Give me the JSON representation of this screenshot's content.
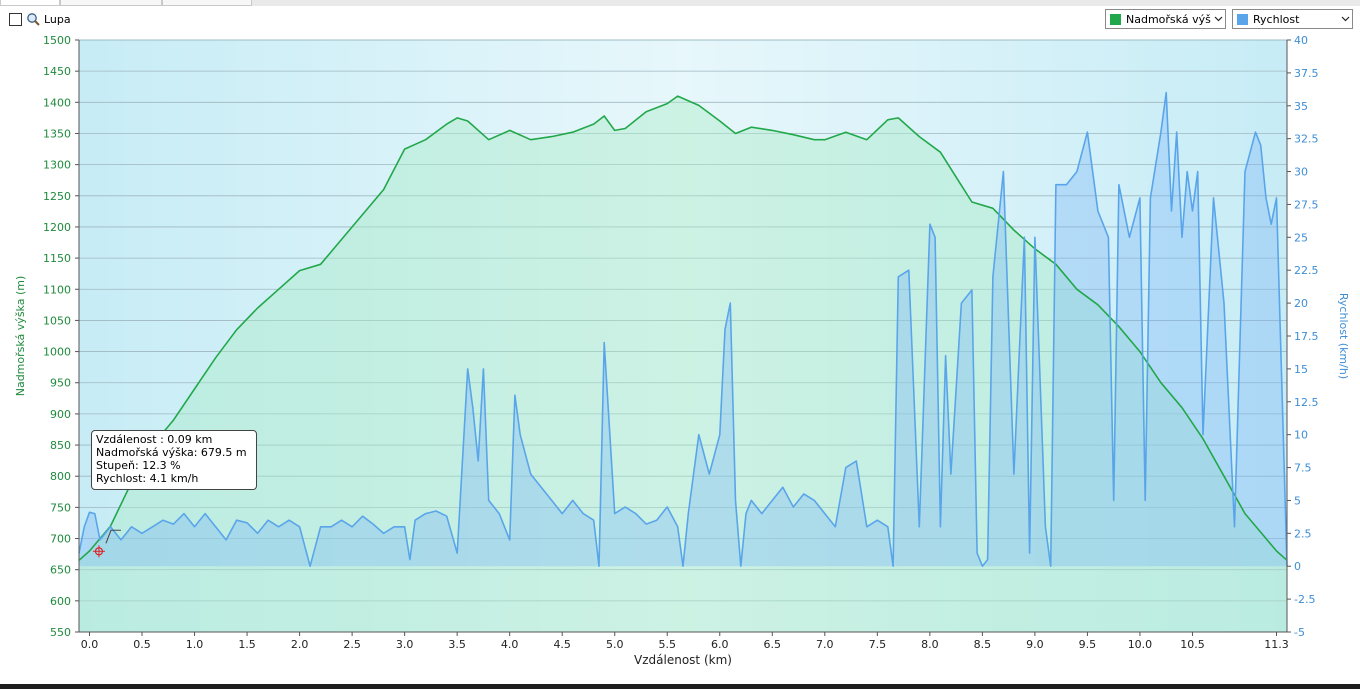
{
  "toolbar": {
    "lupa_label": "Lupa",
    "left_select": {
      "label": "Nadmořská výšk",
      "color": "#22a84a"
    },
    "right_select": {
      "label": "Rychlost",
      "color": "#5aa5ea"
    }
  },
  "tooltip": {
    "line1": "Vzdálenost : 0.09 km",
    "line2": "Nadmořská výška: 679.5 m",
    "line3": "Stupeň: 12.3 %",
    "line4": "Rychlost: 4.1 km/h"
  },
  "chart_data": {
    "type": "area",
    "xlabel": "Vzdálenost  (km)",
    "ylabel_left": "Nadmořská výška (m)",
    "ylabel_right": "Rychlost (km/h)",
    "xlim": [
      -0.1,
      11.4
    ],
    "ylim_left": [
      550,
      1500
    ],
    "ylim_right": [
      -5,
      40
    ],
    "x_ticks": [
      "0.0",
      "0.5",
      "1.0",
      "1.5",
      "2.0",
      "2.5",
      "3.0",
      "3.5",
      "4.0",
      "4.5",
      "5.0",
      "5.5",
      "6.0",
      "6.5",
      "7.0",
      "7.5",
      "8.0",
      "8.5",
      "9.0",
      "9.5",
      "10.0",
      "10.5",
      "11.3"
    ],
    "y_ticks_left": [
      "550",
      "600",
      "650",
      "700",
      "750",
      "800",
      "850",
      "900",
      "950",
      "1000",
      "1050",
      "1100",
      "1150",
      "1200",
      "1250",
      "1300",
      "1350",
      "1400",
      "1450",
      "1500"
    ],
    "y_ticks_right": [
      "-5",
      "-2.5",
      "0",
      "2.5",
      "5",
      "7.5",
      "10",
      "12.5",
      "15",
      "17.5",
      "20",
      "22.5",
      "25",
      "27.5",
      "30",
      "32.5",
      "35",
      "37.5",
      "40"
    ],
    "grid": true,
    "marker": {
      "x": 0.09,
      "y": 679.5
    },
    "series": [
      {
        "name": "Nadmořská výška",
        "axis": "left",
        "color": "#22a84a",
        "points": [
          [
            -0.1,
            665
          ],
          [
            0,
            680
          ],
          [
            0.2,
            720
          ],
          [
            0.4,
            790
          ],
          [
            0.6,
            850
          ],
          [
            0.8,
            890
          ],
          [
            1.0,
            940
          ],
          [
            1.2,
            990
          ],
          [
            1.4,
            1035
          ],
          [
            1.6,
            1070
          ],
          [
            1.8,
            1100
          ],
          [
            2.0,
            1130
          ],
          [
            2.2,
            1140
          ],
          [
            2.4,
            1180
          ],
          [
            2.6,
            1220
          ],
          [
            2.8,
            1260
          ],
          [
            3.0,
            1325
          ],
          [
            3.2,
            1340
          ],
          [
            3.4,
            1365
          ],
          [
            3.5,
            1375
          ],
          [
            3.6,
            1370
          ],
          [
            3.8,
            1340
          ],
          [
            4.0,
            1355
          ],
          [
            4.2,
            1340
          ],
          [
            4.4,
            1345
          ],
          [
            4.6,
            1352
          ],
          [
            4.8,
            1365
          ],
          [
            4.9,
            1378
          ],
          [
            5.0,
            1355
          ],
          [
            5.1,
            1358
          ],
          [
            5.3,
            1385
          ],
          [
            5.5,
            1398
          ],
          [
            5.6,
            1410
          ],
          [
            5.8,
            1395
          ],
          [
            6.0,
            1370
          ],
          [
            6.15,
            1350
          ],
          [
            6.3,
            1360
          ],
          [
            6.5,
            1355
          ],
          [
            6.7,
            1348
          ],
          [
            6.9,
            1340
          ],
          [
            7.0,
            1340
          ],
          [
            7.2,
            1352
          ],
          [
            7.4,
            1340
          ],
          [
            7.6,
            1372
          ],
          [
            7.7,
            1375
          ],
          [
            7.9,
            1345
          ],
          [
            8.1,
            1320
          ],
          [
            8.25,
            1280
          ],
          [
            8.4,
            1240
          ],
          [
            8.6,
            1230
          ],
          [
            8.8,
            1195
          ],
          [
            9.0,
            1165
          ],
          [
            9.2,
            1140
          ],
          [
            9.4,
            1100
          ],
          [
            9.6,
            1075
          ],
          [
            9.8,
            1040
          ],
          [
            10.0,
            1000
          ],
          [
            10.2,
            950
          ],
          [
            10.4,
            910
          ],
          [
            10.6,
            860
          ],
          [
            10.8,
            800
          ],
          [
            11.0,
            740
          ],
          [
            11.2,
            700
          ],
          [
            11.3,
            680
          ],
          [
            11.4,
            665
          ]
        ]
      },
      {
        "name": "Rychlost",
        "axis": "right",
        "color": "#5aa5ea",
        "points": [
          [
            -0.1,
            1
          ],
          [
            -0.05,
            3
          ],
          [
            0,
            4.1
          ],
          [
            0.05,
            4
          ],
          [
            0.1,
            2
          ],
          [
            0.2,
            3
          ],
          [
            0.3,
            2
          ],
          [
            0.4,
            3
          ],
          [
            0.5,
            2.5
          ],
          [
            0.6,
            3
          ],
          [
            0.7,
            3.5
          ],
          [
            0.8,
            3.2
          ],
          [
            0.9,
            4
          ],
          [
            1.0,
            3
          ],
          [
            1.1,
            4
          ],
          [
            1.2,
            3
          ],
          [
            1.3,
            2
          ],
          [
            1.4,
            3.5
          ],
          [
            1.5,
            3.3
          ],
          [
            1.6,
            2.5
          ],
          [
            1.7,
            3.5
          ],
          [
            1.8,
            3
          ],
          [
            1.9,
            3.5
          ],
          [
            2.0,
            3
          ],
          [
            2.1,
            0
          ],
          [
            2.2,
            3
          ],
          [
            2.3,
            3
          ],
          [
            2.4,
            3.5
          ],
          [
            2.5,
            3
          ],
          [
            2.6,
            3.8
          ],
          [
            2.7,
            3.2
          ],
          [
            2.8,
            2.5
          ],
          [
            2.9,
            3
          ],
          [
            3.0,
            3
          ],
          [
            3.05,
            0.5
          ],
          [
            3.1,
            3.5
          ],
          [
            3.2,
            4
          ],
          [
            3.3,
            4.2
          ],
          [
            3.4,
            3.8
          ],
          [
            3.5,
            1
          ],
          [
            3.6,
            15
          ],
          [
            3.65,
            12
          ],
          [
            3.7,
            8
          ],
          [
            3.75,
            15
          ],
          [
            3.8,
            5
          ],
          [
            3.9,
            4
          ],
          [
            4.0,
            2
          ],
          [
            4.05,
            13
          ],
          [
            4.1,
            10
          ],
          [
            4.2,
            7
          ],
          [
            4.3,
            6
          ],
          [
            4.4,
            5
          ],
          [
            4.5,
            4
          ],
          [
            4.6,
            5
          ],
          [
            4.7,
            4
          ],
          [
            4.8,
            3.5
          ],
          [
            4.85,
            0
          ],
          [
            4.9,
            17
          ],
          [
            5.0,
            4
          ],
          [
            5.1,
            4.5
          ],
          [
            5.2,
            4
          ],
          [
            5.3,
            3.2
          ],
          [
            5.4,
            3.5
          ],
          [
            5.5,
            4.5
          ],
          [
            5.6,
            3
          ],
          [
            5.65,
            0
          ],
          [
            5.7,
            4
          ],
          [
            5.8,
            10
          ],
          [
            5.9,
            7
          ],
          [
            6.0,
            10
          ],
          [
            6.05,
            18
          ],
          [
            6.1,
            20
          ],
          [
            6.15,
            5
          ],
          [
            6.2,
            0
          ],
          [
            6.25,
            4
          ],
          [
            6.3,
            5
          ],
          [
            6.4,
            4
          ],
          [
            6.5,
            5
          ],
          [
            6.6,
            6
          ],
          [
            6.7,
            4.5
          ],
          [
            6.8,
            5.5
          ],
          [
            6.9,
            5
          ],
          [
            7.0,
            4
          ],
          [
            7.1,
            3
          ],
          [
            7.2,
            7.5
          ],
          [
            7.3,
            8
          ],
          [
            7.4,
            3
          ],
          [
            7.5,
            3.5
          ],
          [
            7.6,
            3
          ],
          [
            7.65,
            0
          ],
          [
            7.7,
            22
          ],
          [
            7.8,
            22.5
          ],
          [
            7.9,
            3
          ],
          [
            8.0,
            26
          ],
          [
            8.05,
            25
          ],
          [
            8.1,
            3
          ],
          [
            8.15,
            16
          ],
          [
            8.2,
            7
          ],
          [
            8.3,
            20
          ],
          [
            8.4,
            21
          ],
          [
            8.45,
            1
          ],
          [
            8.5,
            0
          ],
          [
            8.55,
            0.5
          ],
          [
            8.6,
            22
          ],
          [
            8.7,
            30
          ],
          [
            8.8,
            7
          ],
          [
            8.9,
            25
          ],
          [
            8.95,
            1
          ],
          [
            9.0,
            25
          ],
          [
            9.1,
            3
          ],
          [
            9.15,
            0
          ],
          [
            9.2,
            29
          ],
          [
            9.3,
            29
          ],
          [
            9.4,
            30
          ],
          [
            9.5,
            33
          ],
          [
            9.6,
            27
          ],
          [
            9.7,
            25
          ],
          [
            9.75,
            5
          ],
          [
            9.8,
            29
          ],
          [
            9.9,
            25
          ],
          [
            10.0,
            28
          ],
          [
            10.05,
            5
          ],
          [
            10.1,
            28
          ],
          [
            10.2,
            33
          ],
          [
            10.25,
            36
          ],
          [
            10.3,
            27
          ],
          [
            10.35,
            33
          ],
          [
            10.4,
            25
          ],
          [
            10.45,
            30
          ],
          [
            10.5,
            27
          ],
          [
            10.55,
            30
          ],
          [
            10.6,
            10
          ],
          [
            10.7,
            28
          ],
          [
            10.8,
            20
          ],
          [
            10.9,
            3
          ],
          [
            11.0,
            30
          ],
          [
            11.1,
            33
          ],
          [
            11.15,
            32
          ],
          [
            11.2,
            28
          ],
          [
            11.25,
            26
          ],
          [
            11.3,
            28
          ],
          [
            11.4,
            0
          ]
        ]
      }
    ]
  }
}
